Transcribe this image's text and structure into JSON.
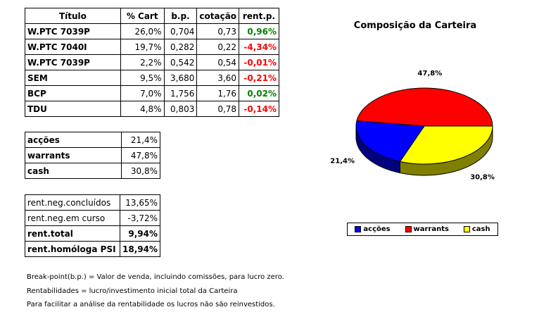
{
  "positions": {
    "headers": [
      "Título",
      "% Cart",
      "b.p.",
      "cotação",
      "rent.p."
    ],
    "rows": [
      {
        "titulo": "W.PTC 7039P",
        "cart": "26,0%",
        "bp": "0,704",
        "cotacao": "0,73",
        "rent": "0,96%",
        "rent_color": "#008000"
      },
      {
        "titulo": "W.PTC 7040I",
        "cart": "19,7%",
        "bp": "0,282",
        "cotacao": "0,22",
        "rent": "-4,34%",
        "rent_color": "#ff0000"
      },
      {
        "titulo": "W.PTC 7039P",
        "cart": "2,2%",
        "bp": "0,542",
        "cotacao": "0,54",
        "rent": "-0,01%",
        "rent_color": "#ff0000"
      },
      {
        "titulo": "SEM",
        "cart": "9,5%",
        "bp": "3,680",
        "cotacao": "3,60",
        "rent": "-0,21%",
        "rent_color": "#ff0000"
      },
      {
        "titulo": "BCP",
        "cart": "7,0%",
        "bp": "1,756",
        "cotacao": "1,76",
        "rent": "0,02%",
        "rent_color": "#008000"
      },
      {
        "titulo": "TDU",
        "cart": "4,8%",
        "bp": "0,803",
        "cotacao": "0,78",
        "rent": "-0,14%",
        "rent_color": "#ff0000"
      }
    ]
  },
  "allocation": [
    {
      "label": "acções",
      "value": "21,4%"
    },
    {
      "label": "warrants",
      "value": "47,8%"
    },
    {
      "label": "cash",
      "value": "30,8%"
    }
  ],
  "rentabilidade": [
    {
      "label": "rent.neg.concluídos",
      "value": "13,65%",
      "strong": false
    },
    {
      "label": "rent.neg.em curso",
      "value": "-3,72%",
      "strong": false
    },
    {
      "label": "rent.total",
      "value": "9,94%",
      "strong": true
    },
    {
      "label": "rent.homóloga PSI",
      "value": "18,94%",
      "strong": true
    }
  ],
  "notes": [
    "Break-point(b.p.) = Valor de venda, incluindo comissões, para lucro zero.",
    "Rentabilidades = lucro/investimento inicial total da Carteira",
    "Para facilitar a análise da rentabilidade os lucros não são reinvestidos."
  ],
  "chart_data": {
    "type": "pie",
    "title": "Composição da Carteira",
    "slices": [
      {
        "name": "acções",
        "value": 21.4,
        "label": "21,4%",
        "color": "#0000ff",
        "side_color": "#000080"
      },
      {
        "name": "warrants",
        "value": 47.8,
        "label": "47,8%",
        "color": "#ff0000",
        "side_color": "#800000"
      },
      {
        "name": "cash",
        "value": 30.8,
        "label": "30,8%",
        "color": "#ffff00",
        "side_color": "#808000"
      }
    ],
    "legend_placement": "bottom"
  }
}
